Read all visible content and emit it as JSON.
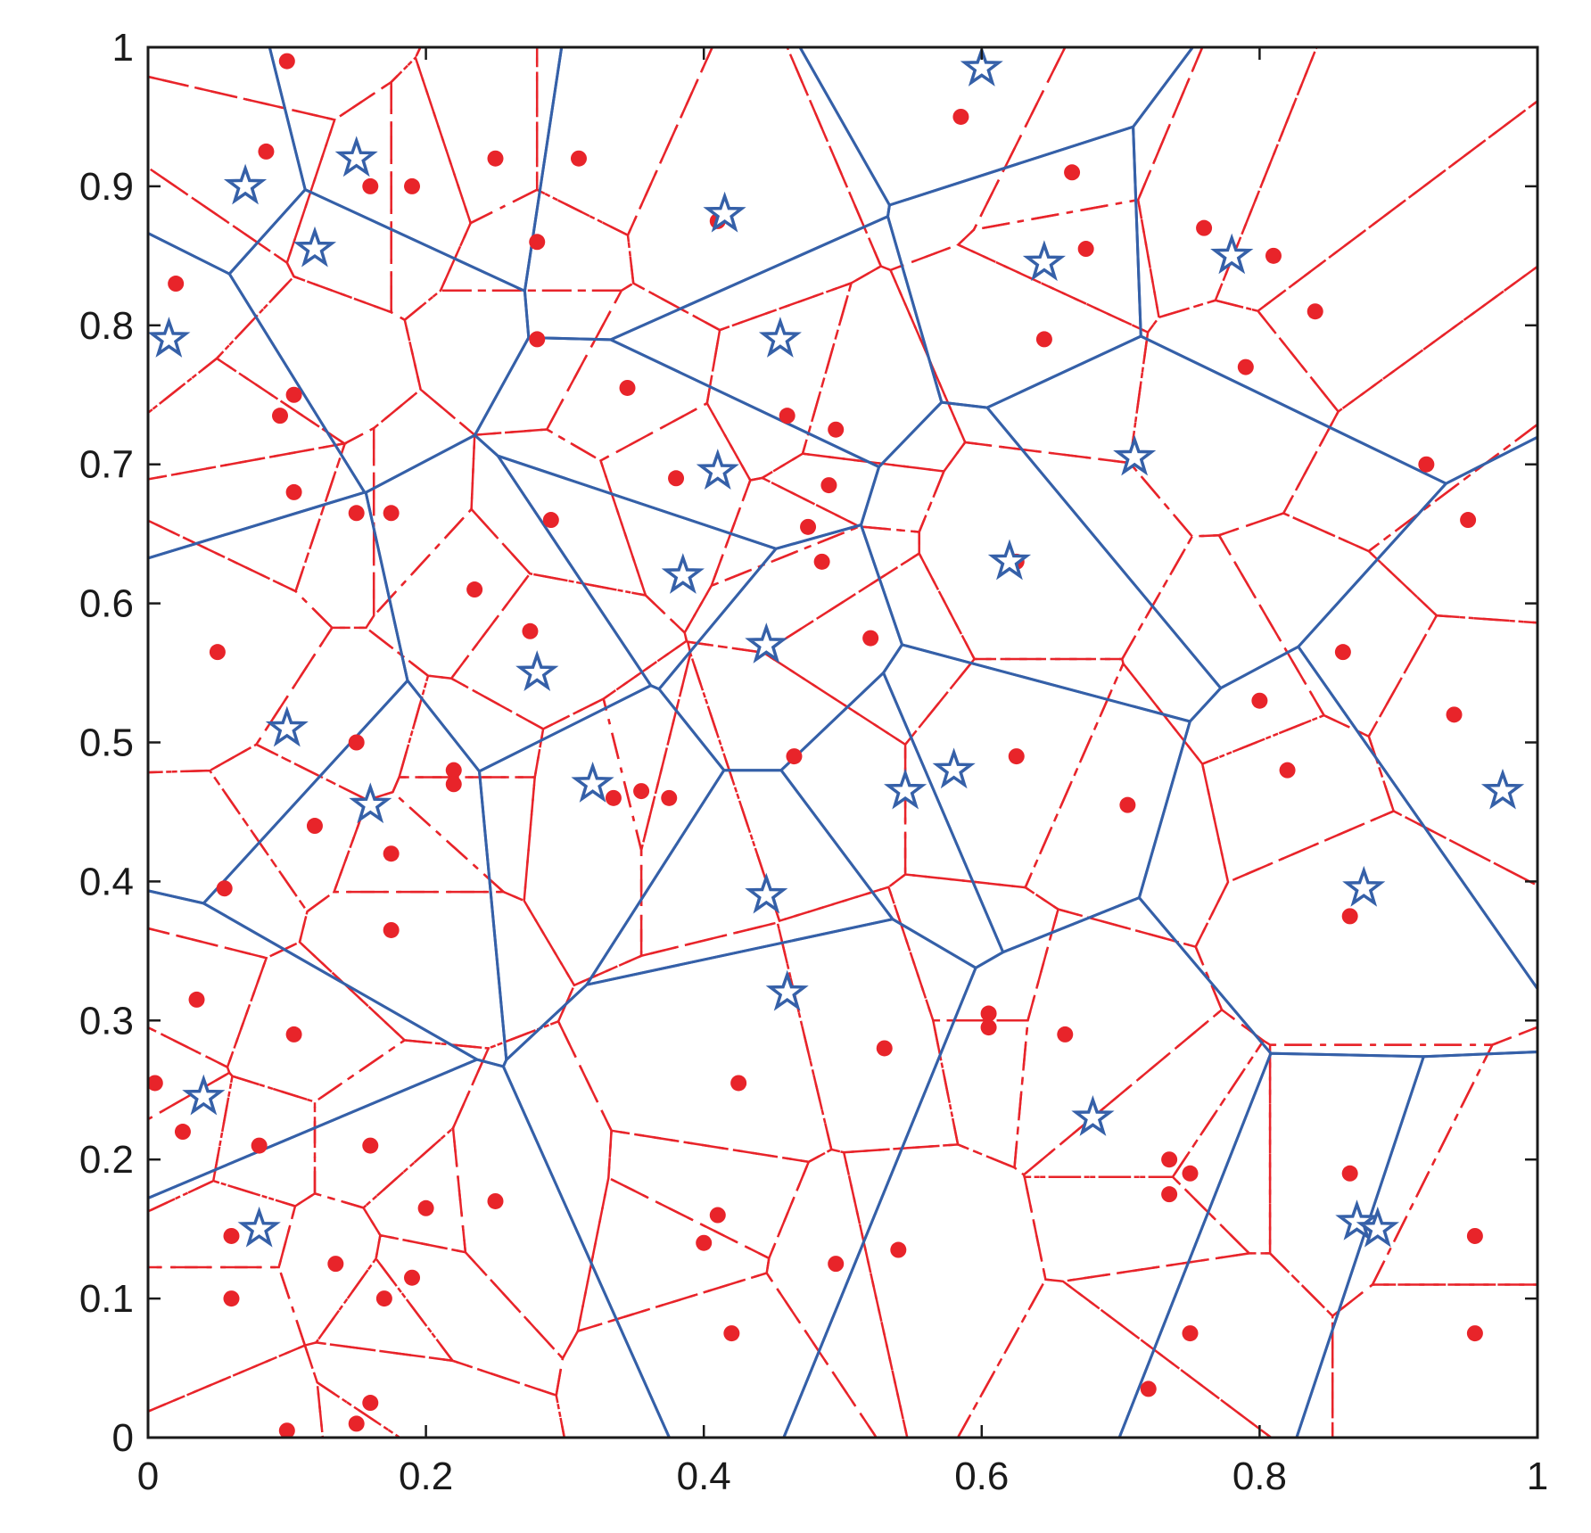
{
  "chart_data": {
    "type": "scatter",
    "title": "",
    "xlabel": "",
    "ylabel": "",
    "xlim": [
      0,
      1
    ],
    "ylim": [
      0,
      1
    ],
    "grid": false,
    "x_ticks": [
      "0",
      "0.2",
      "0.4",
      "0.6",
      "0.8",
      "1"
    ],
    "y_ticks": [
      "0",
      "0.1",
      "0.2",
      "0.3",
      "0.4",
      "0.5",
      "0.6",
      "0.7",
      "0.8",
      "0.9",
      "1"
    ],
    "colors": {
      "stars": "#3560a8",
      "dots": "#e8242a",
      "solid_cells": "#3560a8",
      "dashed_cells": "#e8242a"
    },
    "series": [
      {
        "marker": "star",
        "points": [
          [
            0.07,
            0.9
          ],
          [
            0.15,
            0.92
          ],
          [
            0.12,
            0.855
          ],
          [
            0.015,
            0.79
          ],
          [
            0.415,
            0.88
          ],
          [
            0.6,
            0.985
          ],
          [
            0.645,
            0.845
          ],
          [
            0.78,
            0.85
          ],
          [
            0.455,
            0.79
          ],
          [
            0.41,
            0.695
          ],
          [
            0.71,
            0.705
          ],
          [
            0.385,
            0.62
          ],
          [
            0.62,
            0.63
          ],
          [
            0.445,
            0.57
          ],
          [
            0.28,
            0.55
          ],
          [
            0.1,
            0.51
          ],
          [
            0.16,
            0.455
          ],
          [
            0.32,
            0.47
          ],
          [
            0.58,
            0.48
          ],
          [
            0.545,
            0.465
          ],
          [
            0.975,
            0.465
          ],
          [
            0.875,
            0.395
          ],
          [
            0.445,
            0.39
          ],
          [
            0.46,
            0.32
          ],
          [
            0.04,
            0.245
          ],
          [
            0.68,
            0.23
          ],
          [
            0.08,
            0.15
          ],
          [
            0.87,
            0.155
          ],
          [
            0.885,
            0.15
          ]
        ]
      },
      {
        "marker": "dot",
        "points": [
          [
            0.1,
            0.99
          ],
          [
            0.085,
            0.925
          ],
          [
            0.16,
            0.9
          ],
          [
            0.19,
            0.9
          ],
          [
            0.25,
            0.92
          ],
          [
            0.31,
            0.92
          ],
          [
            0.585,
            0.95
          ],
          [
            0.665,
            0.91
          ],
          [
            0.02,
            0.83
          ],
          [
            0.28,
            0.86
          ],
          [
            0.41,
            0.875
          ],
          [
            0.675,
            0.855
          ],
          [
            0.76,
            0.87
          ],
          [
            0.81,
            0.85
          ],
          [
            0.84,
            0.81
          ],
          [
            0.28,
            0.79
          ],
          [
            0.645,
            0.79
          ],
          [
            0.79,
            0.77
          ],
          [
            0.105,
            0.75
          ],
          [
            0.345,
            0.755
          ],
          [
            0.095,
            0.735
          ],
          [
            0.46,
            0.735
          ],
          [
            0.495,
            0.725
          ],
          [
            0.92,
            0.7
          ],
          [
            0.105,
            0.68
          ],
          [
            0.38,
            0.69
          ],
          [
            0.49,
            0.685
          ],
          [
            0.15,
            0.665
          ],
          [
            0.175,
            0.665
          ],
          [
            0.29,
            0.66
          ],
          [
            0.95,
            0.66
          ],
          [
            0.475,
            0.655
          ],
          [
            0.485,
            0.63
          ],
          [
            0.625,
            0.63
          ],
          [
            0.235,
            0.61
          ],
          [
            0.275,
            0.58
          ],
          [
            0.52,
            0.575
          ],
          [
            0.05,
            0.565
          ],
          [
            0.86,
            0.565
          ],
          [
            0.8,
            0.53
          ],
          [
            0.94,
            0.52
          ],
          [
            0.15,
            0.5
          ],
          [
            0.465,
            0.49
          ],
          [
            0.625,
            0.49
          ],
          [
            0.82,
            0.48
          ],
          [
            0.22,
            0.48
          ],
          [
            0.22,
            0.47
          ],
          [
            0.355,
            0.465
          ],
          [
            0.335,
            0.46
          ],
          [
            0.375,
            0.46
          ],
          [
            0.705,
            0.455
          ],
          [
            0.12,
            0.44
          ],
          [
            0.175,
            0.42
          ],
          [
            0.055,
            0.395
          ],
          [
            0.865,
            0.375
          ],
          [
            0.175,
            0.365
          ],
          [
            0.035,
            0.315
          ],
          [
            0.605,
            0.305
          ],
          [
            0.605,
            0.295
          ],
          [
            0.105,
            0.29
          ],
          [
            0.66,
            0.29
          ],
          [
            0.53,
            0.28
          ],
          [
            0.425,
            0.255
          ],
          [
            0.005,
            0.255
          ],
          [
            0.025,
            0.22
          ],
          [
            0.08,
            0.21
          ],
          [
            0.16,
            0.21
          ],
          [
            0.735,
            0.2
          ],
          [
            0.75,
            0.19
          ],
          [
            0.865,
            0.19
          ],
          [
            0.735,
            0.175
          ],
          [
            0.25,
            0.17
          ],
          [
            0.2,
            0.165
          ],
          [
            0.41,
            0.16
          ],
          [
            0.06,
            0.145
          ],
          [
            0.4,
            0.14
          ],
          [
            0.955,
            0.145
          ],
          [
            0.54,
            0.135
          ],
          [
            0.135,
            0.125
          ],
          [
            0.495,
            0.125
          ],
          [
            0.19,
            0.115
          ],
          [
            0.06,
            0.1
          ],
          [
            0.17,
            0.1
          ],
          [
            0.42,
            0.075
          ],
          [
            0.75,
            0.075
          ],
          [
            0.955,
            0.075
          ],
          [
            0.72,
            0.035
          ],
          [
            0.16,
            0.025
          ],
          [
            0.15,
            0.01
          ],
          [
            0.1,
            0.005
          ]
        ]
      }
    ]
  }
}
